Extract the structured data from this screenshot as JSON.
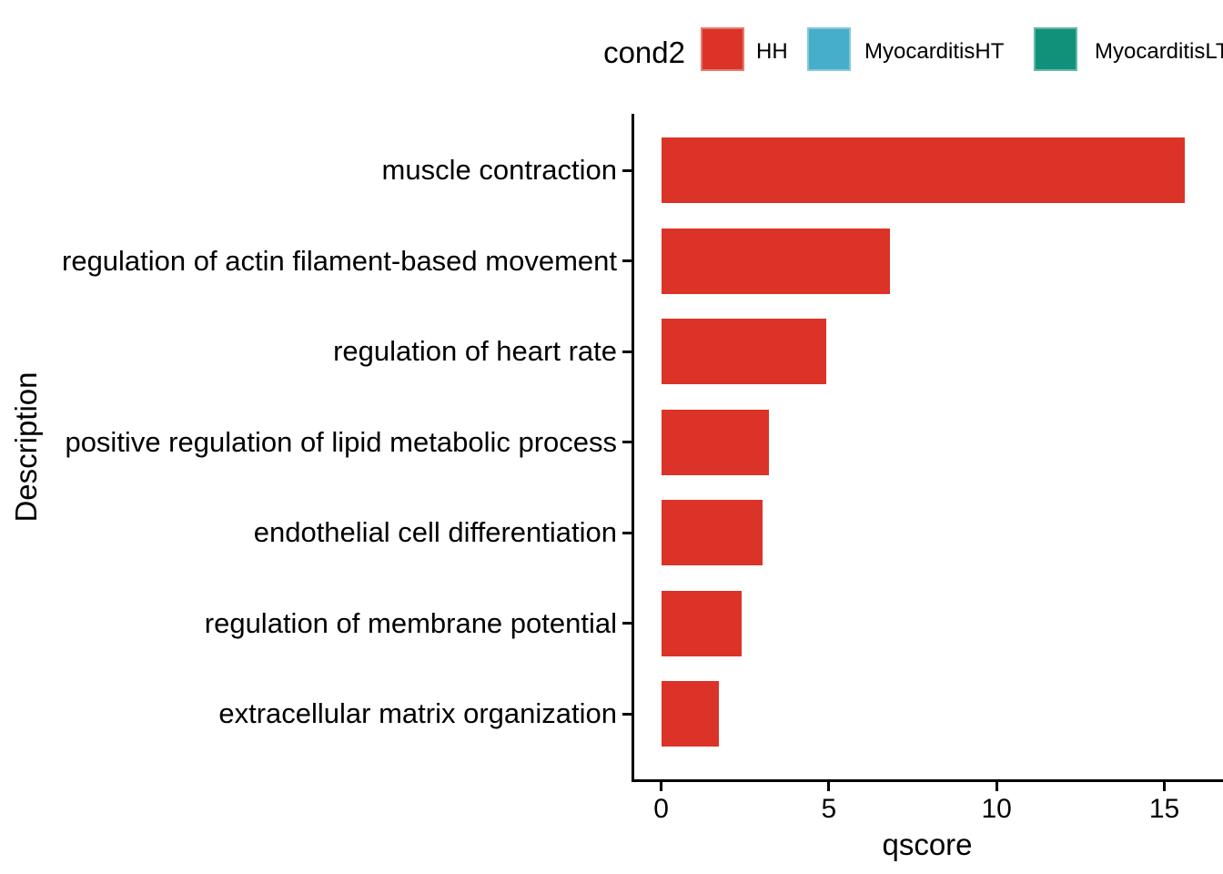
{
  "figure": {
    "background": "#FFFFFF",
    "text_color": "#000000",
    "axis_color": "#000000"
  },
  "legend": {
    "title": "cond2",
    "position": "top",
    "items": [
      {
        "label": "HH",
        "color": "#DB3327"
      },
      {
        "label": "MyocarditisHT",
        "color": "#46ADCB"
      },
      {
        "label": "MyocarditisLT",
        "color": "#12917A"
      }
    ]
  },
  "chart_data": {
    "type": "bar",
    "orientation": "horizontal",
    "title": "",
    "xlabel": "qscore",
    "ylabel": "Description",
    "categories": [
      "muscle contraction",
      "regulation of actin filament-based movement",
      "regulation of heart rate",
      "positive regulation of lipid metabolic process",
      "endothelial cell differentiation",
      "regulation of membrane potential",
      "extracellular matrix organization"
    ],
    "series": [
      {
        "name": "HH",
        "color": "#DB3327",
        "values": [
          15.6,
          6.8,
          4.9,
          3.2,
          3.0,
          2.4,
          1.7
        ]
      }
    ],
    "x_tick_labels": [
      "0",
      "5",
      "10",
      "15"
    ],
    "x_tick_values": [
      0,
      5,
      10,
      15
    ],
    "xlim": [
      0,
      16.7
    ],
    "grid": false,
    "legend_position": "top"
  }
}
